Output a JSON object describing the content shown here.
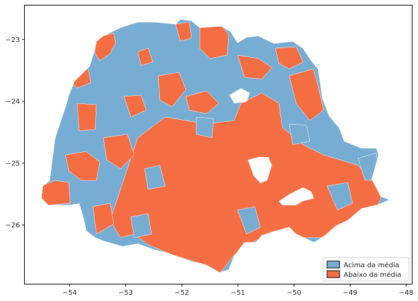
{
  "colors": {
    "above": "#77acd3",
    "below": "#f46d43",
    "axes": "#000000",
    "background": "#ffffff"
  },
  "chart_data": {
    "type": "map",
    "title": "",
    "xlabel": "",
    "ylabel": "",
    "xlim": [
      -54.8,
      -47.9
    ],
    "ylim": [
      -26.95,
      -22.45
    ],
    "x_ticks": [
      {
        "value": -54,
        "label": "−54"
      },
      {
        "value": -53,
        "label": "−53"
      },
      {
        "value": -52,
        "label": "−52"
      },
      {
        "value": -51,
        "label": "−51"
      },
      {
        "value": -50,
        "label": "−50"
      },
      {
        "value": -49,
        "label": "−49"
      },
      {
        "value": -48,
        "label": "−48"
      }
    ],
    "y_ticks": [
      {
        "value": -23,
        "label": "−23"
      },
      {
        "value": -24,
        "label": "−24"
      },
      {
        "value": -25,
        "label": "−25"
      },
      {
        "value": -26,
        "label": "−26"
      }
    ],
    "grid": false,
    "legend": {
      "placement": "lower-right",
      "entries": [
        {
          "label": "Acima da média",
          "color_key": "above"
        },
        {
          "label": "Abaixo da média",
          "color_key": "below"
        }
      ]
    }
  }
}
